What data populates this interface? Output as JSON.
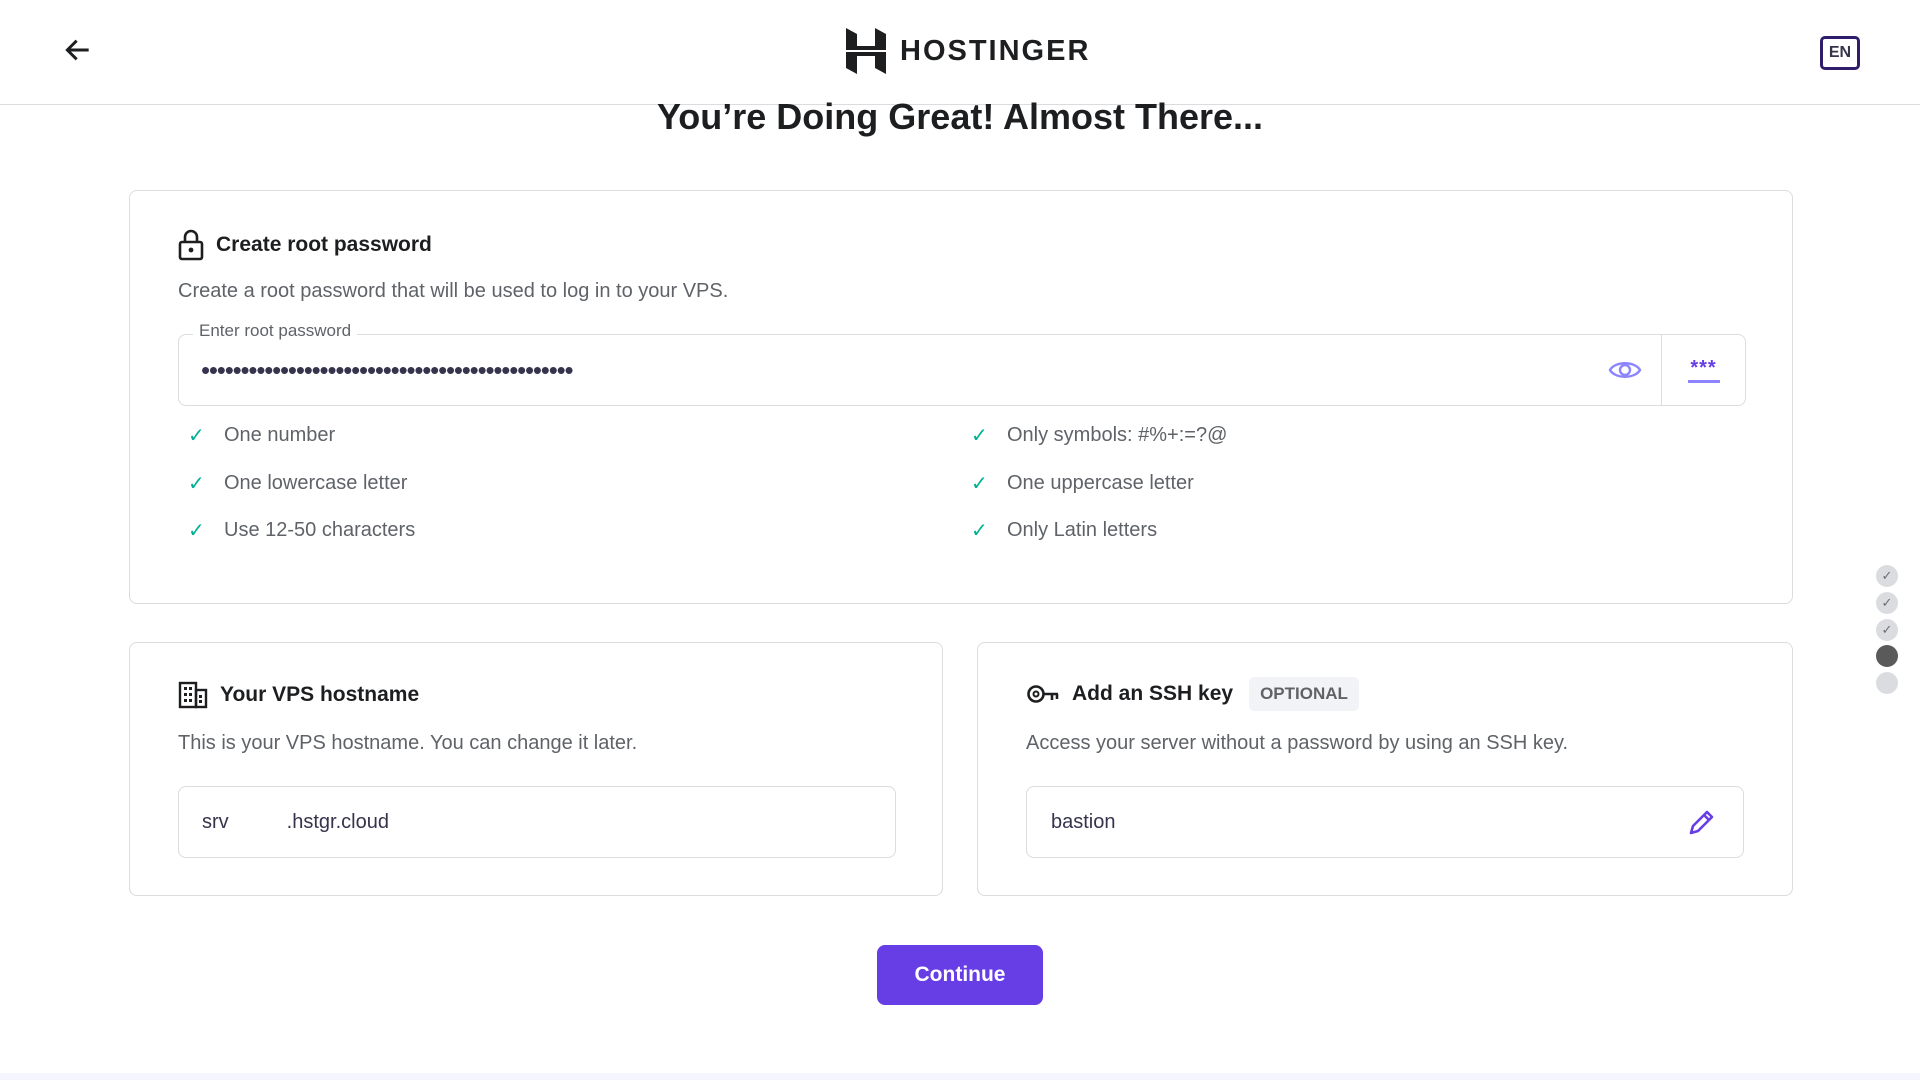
{
  "header": {
    "brand": "HOSTINGER",
    "language": "EN"
  },
  "title": "You’re Doing Great! Almost There...",
  "password_card": {
    "heading": "Create root password",
    "description": "Create a root password that will be used to log in to your VPS.",
    "field_label": "Enter root password",
    "masked_value": "•••••••••••••••••••••••••••••••••••••••••••••••",
    "generate_label": "***",
    "requirements_left": [
      "One number",
      "One lowercase letter",
      "Use 12-50 characters"
    ],
    "requirements_right": [
      "Only symbols: #%+:=?@",
      "One uppercase letter",
      "Only Latin letters"
    ]
  },
  "hostname_card": {
    "heading": "Your VPS hostname",
    "description": "This is your VPS hostname. You can change it later.",
    "prefix": "srv",
    "suffix": ".hstgr.cloud"
  },
  "ssh_card": {
    "heading": "Add an SSH key",
    "badge": "OPTIONAL",
    "description": "Access your server without a password by using an SSH key.",
    "value": "bastion"
  },
  "continue_label": "Continue",
  "steps": [
    "done",
    "done",
    "done",
    "current",
    "pending"
  ],
  "colors": {
    "accent": "#673de6",
    "check": "#00b090"
  }
}
